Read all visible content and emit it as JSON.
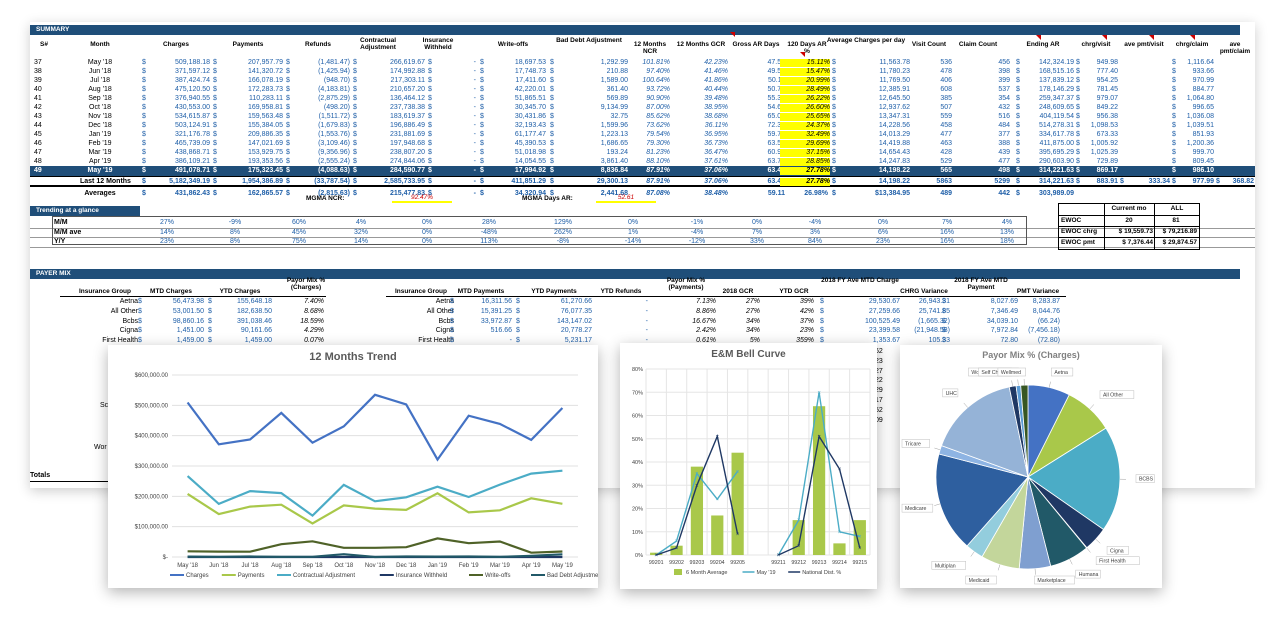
{
  "summary": {
    "title": "SUMMARY",
    "headers": [
      "S#",
      "Month",
      "Charges",
      "Payments",
      "Refunds",
      "Contractual Adjustment",
      "Insurance Withheld",
      "Write-offs",
      "Bad Debt Adjustment",
      "12 Months NCR",
      "12 Months GCR",
      "Gross AR Days",
      "120 Days AR %",
      "Average Charges per day",
      "Visit Count",
      "Claim Count",
      "Ending AR",
      "chrg/visit",
      "ave pmt/visit",
      "chrg/claim",
      "ave pmt/claim"
    ],
    "rows": [
      [
        "37",
        "May '18",
        "509,188.18",
        "207,957.79",
        "(1,481.47)",
        "266,619.67",
        "-",
        "18,697.53",
        "1,292.99",
        "101.81%",
        "42.23%",
        "47.57",
        "15.11%",
        "11,563.78",
        "536",
        "456",
        "142,324.19",
        "949.98",
        "",
        "1,116.64",
        ""
      ],
      [
        "38",
        "Jun '18",
        "371,597.12",
        "141,320.72",
        "(1,425.94)",
        "174,992.88",
        "-",
        "17,748.73",
        "210.88",
        "97.40%",
        "41.46%",
        "49.58",
        "15.47%",
        "11,780.23",
        "478",
        "398",
        "168,515.16",
        "777.40",
        "",
        "933.66",
        ""
      ],
      [
        "39",
        "Jul '18",
        "387,424.74",
        "166,078.19",
        "(948.70)",
        "217,303.11",
        "-",
        "17,411.60",
        "1,589.00",
        "100.64%",
        "41.86%",
        "50.11",
        "20.99%",
        "11,769.50",
        "406",
        "399",
        "137,839.12",
        "954.25",
        "",
        "970.99",
        ""
      ],
      [
        "40",
        "Aug '18",
        "475,120.50",
        "172,283.73",
        "(4,183.81)",
        "210,657.20",
        "-",
        "42,220.01",
        "361.40",
        "93.72%",
        "40.44%",
        "50.75",
        "28.49%",
        "12,385.91",
        "608",
        "537",
        "178,146.29",
        "781.45",
        "",
        "884.77",
        ""
      ],
      [
        "41",
        "Sep '18",
        "376,940.55",
        "110,283.11",
        "(2,875.29)",
        "136,464.12",
        "-",
        "51,865.51",
        "569.89",
        "90.90%",
        "39.48%",
        "55.36",
        "26.22%",
        "12,645.50",
        "385",
        "354",
        "259,347.37",
        "979.07",
        "",
        "1,064.80",
        ""
      ],
      [
        "42",
        "Oct '18",
        "430,553.00",
        "169,958.81",
        "(498.20)",
        "237,738.38",
        "-",
        "30,345.70",
        "9,134.99",
        "87.00%",
        "38.95%",
        "54.68",
        "26.60%",
        "12,937.62",
        "507",
        "432",
        "248,609.65",
        "849.22",
        "",
        "996.65",
        ""
      ],
      [
        "43",
        "Nov '18",
        "534,615.87",
        "159,563.48",
        "(1,511.72)",
        "183,619.37",
        "-",
        "30,431.86",
        "32.75",
        "85.62%",
        "38.68%",
        "65.07",
        "25.65%",
        "13,347.31",
        "559",
        "516",
        "404,119.54",
        "956.38",
        "",
        "1,036.08",
        ""
      ],
      [
        "44",
        "Dec '18",
        "503,124.91",
        "155,384.05",
        "(1,679.83)",
        "196,886.49",
        "-",
        "32,193.43",
        "1,599.96",
        "73.62%",
        "36.11%",
        "72.36",
        "24.37%",
        "14,228.56",
        "458",
        "484",
        "514,278.31",
        "1,098.53",
        "",
        "1,039.51",
        ""
      ],
      [
        "45",
        "Jan '19",
        "321,176.78",
        "209,886.35",
        "(1,553.76)",
        "231,881.69",
        "-",
        "61,177.47",
        "1,223.13",
        "79.54%",
        "36.95%",
        "59.75",
        "32.49%",
        "14,013.29",
        "477",
        "377",
        "334,617.78",
        "673.33",
        "",
        "851.93",
        ""
      ],
      [
        "46",
        "Feb '19",
        "465,739.09",
        "147,021.69",
        "(3,109.46)",
        "197,948.68",
        "-",
        "45,390.53",
        "1,686.65",
        "79.30%",
        "36.73%",
        "63.54",
        "29.69%",
        "14,419.88",
        "463",
        "388",
        "411,875.00",
        "1,005.92",
        "",
        "1,200.36",
        ""
      ],
      [
        "47",
        "Mar '19",
        "438,868.71",
        "153,929.75",
        "(9,356.96)",
        "238,807.20",
        "-",
        "51,018.98",
        "193.24",
        "81.23%",
        "36.47%",
        "60.91",
        "37.15%",
        "14,654.43",
        "428",
        "439",
        "395,695.29",
        "1,025.39",
        "",
        "999.70",
        ""
      ],
      [
        "48",
        "Apr '19",
        "386,109.21",
        "193,353.56",
        "(2,555.24)",
        "274,844.06",
        "-",
        "14,054.55",
        "3,861.40",
        "88.10%",
        "37.61%",
        "63.74",
        "28.85%",
        "14,247.83",
        "529",
        "477",
        "290,603.90",
        "729.89",
        "",
        "809.45",
        ""
      ]
    ],
    "selected": [
      "49",
      "May '19",
      "491,078.71",
      "175,323.45",
      "(4,088.63)",
      "284,590.77",
      "-",
      "17,994.92",
      "8,836.84",
      "87.91%",
      "37.06%",
      "63.47",
      "27.78%",
      "14,198.22",
      "565",
      "498",
      "314,221.63",
      "869.17",
      "",
      "986.10",
      ""
    ],
    "last12": [
      "",
      "Last 12 Months",
      "5,182,349.19",
      "1,954,386.89",
      "(33,787.54)",
      "2,585,733.95",
      "-",
      "411,851.29",
      "29,300.13",
      "87.91%",
      "37.06%",
      "63.47",
      "27.78%",
      "14,198.22",
      "5863",
      "5299",
      "314,221.63",
      "883.91",
      "333.34",
      "977.99",
      "368.82"
    ],
    "averages": [
      "",
      "Averages",
      "431,862.43",
      "162,865.57",
      "(2,815.63)",
      "215,477.83",
      "-",
      "34,320.94",
      "2,441.68",
      "87.08%",
      "38.48%",
      "59.11",
      "26.98%",
      "$13,384.95",
      "489",
      "442",
      "303,989.09",
      "",
      "",
      "",
      ""
    ],
    "currency": "$",
    "mgma_ncr_label": "MGMA NCR:",
    "mgma_ncr": "92.47%",
    "mgma_days_label": "MGMA Days AR:",
    "mgma_days": "52.61"
  },
  "trending": {
    "title": "Trending at a glance",
    "rows": [
      {
        "label": "M/M",
        "values": [
          "27%",
          "-9%",
          "60%",
          "4%",
          "0%",
          "28%",
          "129%",
          "0%",
          "-1%",
          "0%",
          "-4%",
          "0%",
          "7%",
          "4%"
        ]
      },
      {
        "label": "M/M ave",
        "values": [
          "14%",
          "8%",
          "45%",
          "32%",
          "0%",
          "-48%",
          "262%",
          "1%",
          "-4%",
          "7%",
          "3%",
          "6%",
          "16%",
          "13%"
        ]
      },
      {
        "label": "Y/Y",
        "values": [
          "23%",
          "8%",
          "75%",
          "14%",
          "0%",
          "113%",
          "-8%",
          "-14%",
          "-12%",
          "33%",
          "84%",
          "23%",
          "16%",
          "18%"
        ]
      }
    ]
  },
  "ewoc": {
    "col1": "Current mo",
    "col2": "ALL",
    "rows": [
      {
        "label": "EWOC",
        "cur": "20",
        "all": "81"
      },
      {
        "label": "EWOC chrg",
        "cur": "$ 19,559.73",
        "all": "$ 79,216.89"
      },
      {
        "label": "EWOC pmt",
        "cur": "$ 7,376.44",
        "all": "$ 29,874.57"
      }
    ]
  },
  "payer_mix": {
    "title": "PAYER MIX",
    "left_headers": [
      "Insurance Group",
      "MTD Charges",
      "YTD Charges",
      "Payor Mix % (Charges)"
    ],
    "left_rows": [
      [
        "Aetna",
        "56,473.98",
        "155,648.18",
        "7.40%"
      ],
      [
        "All Other",
        "53,001.50",
        "182,638.50",
        "8.68%"
      ],
      [
        "Bcbs",
        "98,860.16",
        "391,038.46",
        "18.59%"
      ],
      [
        "Cigna",
        "1,451.00",
        "90,161.66",
        "4.29%"
      ],
      [
        "First Health",
        "1,459.00",
        "1,459.00",
        "0.07%"
      ]
    ],
    "right_headers": [
      "Insurance Group",
      "MTD Payments",
      "YTD Payments",
      "YTD Refunds",
      "Payor Mix % (Payments)",
      "2018 GCR",
      "YTD GCR",
      "2018 FY Ave MTD Charge",
      "CHRG Variance",
      "2018 FY Ave MTD Payment",
      "PMT Variance"
    ],
    "right_rows": [
      [
        "Aetna",
        "16,311.56",
        "61,270.66",
        "-",
        "7.13%",
        "27%",
        "39%",
        "29,530.67",
        "26,943.31",
        "8,027.69",
        "8,283.87"
      ],
      [
        "All Other",
        "15,391.25",
        "76,077.35",
        "-",
        "8.86%",
        "27%",
        "42%",
        "27,259.66",
        "25,741.85",
        "7,346.49",
        "8,044.76"
      ],
      [
        "Bcbs",
        "33,972.87",
        "143,147.02",
        "-",
        "16.67%",
        "34%",
        "37%",
        "100,525.49",
        "(1,665.32)",
        "34,039.10",
        "(66.24)"
      ],
      [
        "Cigna",
        "516.66",
        "20,778.27",
        "-",
        "2.42%",
        "34%",
        "23%",
        "23,399.58",
        "(21,948.58)",
        "7,972.84",
        "(7,456.18)"
      ],
      [
        "First Health",
        "-",
        "5,231.17",
        "-",
        "0.61%",
        "5%",
        "359%",
        "1,353.67",
        "105.33",
        "72.80",
        "(72.80)"
      ]
    ],
    "peek_right": [
      "62",
      "23",
      "27",
      "22",
      "29",
      "17",
      "52",
      "09"
    ],
    "peek_left": [
      "Sco",
      "Wor",
      "Totals"
    ]
  },
  "trend_chart": {
    "title": "12 Months Trend",
    "categories": [
      "May '18",
      "Jun '18",
      "Jul '18",
      "Aug '18",
      "Sep '18",
      "Oct '18",
      "Nov '18",
      "Dec '18",
      "Jan '19",
      "Feb '19",
      "Mar '19",
      "Apr '19",
      "May '19"
    ],
    "yticks": [
      "$-",
      "$100,000.00",
      "$200,000.00",
      "$300,000.00",
      "$400,000.00",
      "$500,000.00",
      "$600,000.00"
    ],
    "ylim": [
      0,
      600000
    ],
    "series": [
      {
        "name": "Charges",
        "color": "#4472c4",
        "values": [
          509188,
          371597,
          387425,
          475121,
          376941,
          430553,
          534616,
          503125,
          321177,
          465739,
          438869,
          386109,
          491079
        ]
      },
      {
        "name": "Payments",
        "color": "#a9c84a",
        "values": [
          207958,
          141321,
          166078,
          172284,
          110283,
          169959,
          159563,
          155384,
          209886,
          147022,
          153930,
          193354,
          175323
        ]
      },
      {
        "name": "Contractual Adjustment",
        "color": "#4bacc6",
        "values": [
          266620,
          174993,
          217303,
          210657,
          136464,
          237738,
          183619,
          196886,
          231882,
          197949,
          238807,
          274844,
          284591
        ]
      },
      {
        "name": "Insurance Withheld",
        "color": "#1f3864",
        "values": [
          0,
          0,
          0,
          0,
          0,
          0,
          0,
          0,
          0,
          0,
          0,
          0,
          0
        ]
      },
      {
        "name": "Write-offs",
        "color": "#4f6228",
        "values": [
          18698,
          17749,
          17412,
          42220,
          51866,
          30346,
          30432,
          32193,
          61177,
          45391,
          51019,
          14055,
          17995
        ]
      },
      {
        "name": "Bad Debt Adjustment",
        "color": "#215968",
        "values": [
          1293,
          211,
          1589,
          361,
          570,
          9135,
          33,
          1600,
          1223,
          1687,
          193,
          3861,
          8837
        ]
      }
    ]
  },
  "bell_chart": {
    "title": "E&M Bell Curve",
    "categories": [
      "99201",
      "99202",
      "99203",
      "99204",
      "99205",
      "",
      "99211",
      "99212",
      "99213",
      "99214",
      "99215"
    ],
    "yticks": [
      "0%",
      "10%",
      "20%",
      "30%",
      "40%",
      "50%",
      "60%",
      "70%",
      "80%"
    ],
    "ylim": [
      0,
      0.8
    ],
    "series": [
      {
        "name": "6 Month Average",
        "type": "bar",
        "color": "#a9c84a",
        "values": [
          0.01,
          0.04,
          0.38,
          0.17,
          0.44,
          null,
          0.0,
          0.15,
          0.64,
          0.05,
          0.15
        ]
      },
      {
        "name": "May '19",
        "type": "line",
        "color": "#4bacc6",
        "values": [
          0.0,
          0.06,
          0.35,
          0.24,
          0.36,
          null,
          0.0,
          0.15,
          0.7,
          0.1,
          0.08
        ]
      },
      {
        "name": "National Dist. %",
        "type": "line",
        "color": "#1f3864",
        "values": [
          0.0,
          0.03,
          0.3,
          0.51,
          0.09,
          null,
          0.0,
          0.04,
          0.51,
          0.37,
          0.03
        ]
      }
    ]
  },
  "pie_chart": {
    "title": "Payor Mix % (Charges)",
    "slices": [
      {
        "name": "Aetna",
        "value": 7.4,
        "color": "#4472c4"
      },
      {
        "name": "All Other",
        "value": 8.68,
        "color": "#a9c84a"
      },
      {
        "name": "BCBS",
        "value": 18.59,
        "color": "#4bacc6"
      },
      {
        "name": "Cigna",
        "value": 4.29,
        "color": "#1f3864"
      },
      {
        "name": "First Health",
        "value": 0.07,
        "color": "#4f6228"
      },
      {
        "name": "Humana",
        "value": 7.0,
        "color": "#215968"
      },
      {
        "name": "Marketplace",
        "value": 5.5,
        "color": "#7f9fd0"
      },
      {
        "name": "Medicaid",
        "value": 6.8,
        "color": "#c3d69b"
      },
      {
        "name": "Multiplan",
        "value": 3.2,
        "color": "#93cddd"
      },
      {
        "name": "Medicare",
        "value": 17.5,
        "color": "#2e5f9f"
      },
      {
        "name": "Tricare",
        "value": 1.5,
        "color": "#8eb4e3"
      },
      {
        "name": "UHC",
        "value": 16.2,
        "color": "#95b3d7"
      },
      {
        "name": "Workers Comp",
        "value": 1.2,
        "color": "#1f3864"
      },
      {
        "name": "Self Charge",
        "value": 0.8,
        "color": "#5b9bd5"
      },
      {
        "name": "Wellmed",
        "value": 1.27,
        "color": "#375623"
      }
    ]
  }
}
